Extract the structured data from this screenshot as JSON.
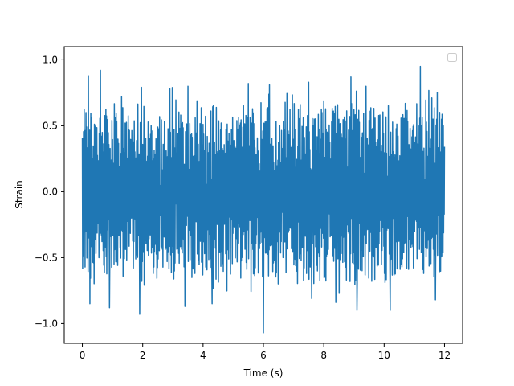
{
  "chart_data": {
    "type": "line",
    "title": "",
    "xlabel": "Time (s)",
    "ylabel": "Strain",
    "xlim": [
      -0.6,
      12.6
    ],
    "ylim": [
      -1.15,
      1.1
    ],
    "x_ticks": [
      0,
      2,
      4,
      6,
      8,
      10,
      12
    ],
    "x_tick_labels": [
      "0",
      "2",
      "4",
      "6",
      "8",
      "10",
      "12"
    ],
    "y_ticks": [
      -1.0,
      -0.5,
      0.0,
      0.5,
      1.0
    ],
    "y_tick_labels": [
      "−1.0",
      "−0.5",
      "0.0",
      "0.5",
      "1.0"
    ],
    "legend": {
      "placement": "upper-right",
      "entries": []
    },
    "grid": false,
    "series": [
      {
        "color": "#1f77b4",
        "x_range": [
          0,
          12
        ],
        "sample_count": 1200,
        "envelope": {
          "typical_min": -0.5,
          "typical_max": 0.5
        },
        "peaks": [
          {
            "x": 0.2,
            "y": 0.88
          },
          {
            "x": 0.6,
            "y": 0.92
          },
          {
            "x": 1.3,
            "y": 0.72
          },
          {
            "x": 1.9,
            "y": 0.85
          },
          {
            "x": 2.9,
            "y": 0.78
          },
          {
            "x": 3.5,
            "y": 0.8
          },
          {
            "x": 5.5,
            "y": 0.82
          },
          {
            "x": 6.2,
            "y": 0.81
          },
          {
            "x": 7.5,
            "y": 0.83
          },
          {
            "x": 8.9,
            "y": 0.87
          },
          {
            "x": 9.4,
            "y": 0.8
          },
          {
            "x": 11.2,
            "y": 0.95
          },
          {
            "x": 11.9,
            "y": 0.55
          }
        ],
        "troughs": [
          {
            "x": 0.25,
            "y": -0.85
          },
          {
            "x": 0.9,
            "y": -0.88
          },
          {
            "x": 1.9,
            "y": -0.93
          },
          {
            "x": 3.4,
            "y": -0.87
          },
          {
            "x": 4.3,
            "y": -0.85
          },
          {
            "x": 6.0,
            "y": -1.07
          },
          {
            "x": 7.6,
            "y": -0.81
          },
          {
            "x": 8.4,
            "y": -0.84
          },
          {
            "x": 9.1,
            "y": -0.9
          },
          {
            "x": 10.2,
            "y": -0.9
          },
          {
            "x": 11.7,
            "y": -0.82
          }
        ]
      }
    ]
  }
}
